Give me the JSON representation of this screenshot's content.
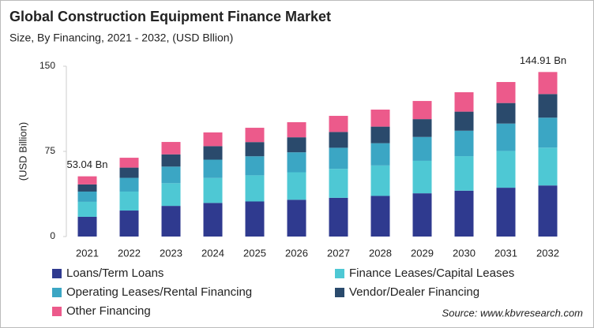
{
  "chart_data": {
    "type": "stacked_bar",
    "title": "Global Construction Equipment Finance Market",
    "subtitle": "Size, By Financing, 2021 - 2032, (USD Bllion)",
    "y_label": "(USD Billion)",
    "source": "Source: www.kbvresearch.com",
    "categories": [
      "2021",
      "2022",
      "2023",
      "2024",
      "2025",
      "2026",
      "2027",
      "2028",
      "2029",
      "2030",
      "2031",
      "2032"
    ],
    "series": [
      {
        "name": "Loans/Term Loans",
        "color": "#2f3a8f",
        "values": [
          17.4,
          22.9,
          27.0,
          29.6,
          30.9,
          32.4,
          34.1,
          35.8,
          38.1,
          40.4,
          43.0,
          45.0
        ]
      },
      {
        "name": "Finance Leases/Capital Leases",
        "color": "#4ec8d4",
        "values": [
          13.2,
          16.7,
          20.0,
          22.0,
          23.0,
          24.2,
          25.5,
          26.8,
          28.6,
          30.4,
          32.4,
          33.3
        ]
      },
      {
        "name": "Operating Leases/Rental Financing",
        "color": "#3ba6c4",
        "values": [
          9.0,
          12.1,
          14.6,
          16.1,
          16.8,
          17.6,
          18.6,
          19.6,
          21.0,
          22.4,
          24.1,
          26.4
        ]
      },
      {
        "name": "Vendor/Dealer Financing",
        "color": "#2a4a6c",
        "values": [
          6.3,
          9.0,
          10.8,
          11.9,
          12.5,
          13.2,
          13.9,
          14.6,
          15.7,
          16.8,
          18.1,
          20.8
        ]
      },
      {
        "name": "Other Financing",
        "color": "#ec5a8b",
        "values": [
          7.14,
          8.7,
          10.9,
          12.1,
          12.6,
          13.3,
          14.2,
          15.0,
          16.0,
          17.1,
          18.5,
          19.41
        ]
      }
    ],
    "annotations": [
      {
        "text": "53.04 Bn",
        "value": 53.04
      },
      {
        "text": "144.91 Bn",
        "value": 144.91
      }
    ],
    "ylim": [
      0,
      150
    ],
    "yticks": [
      0,
      75,
      150
    ],
    "grid": false
  }
}
